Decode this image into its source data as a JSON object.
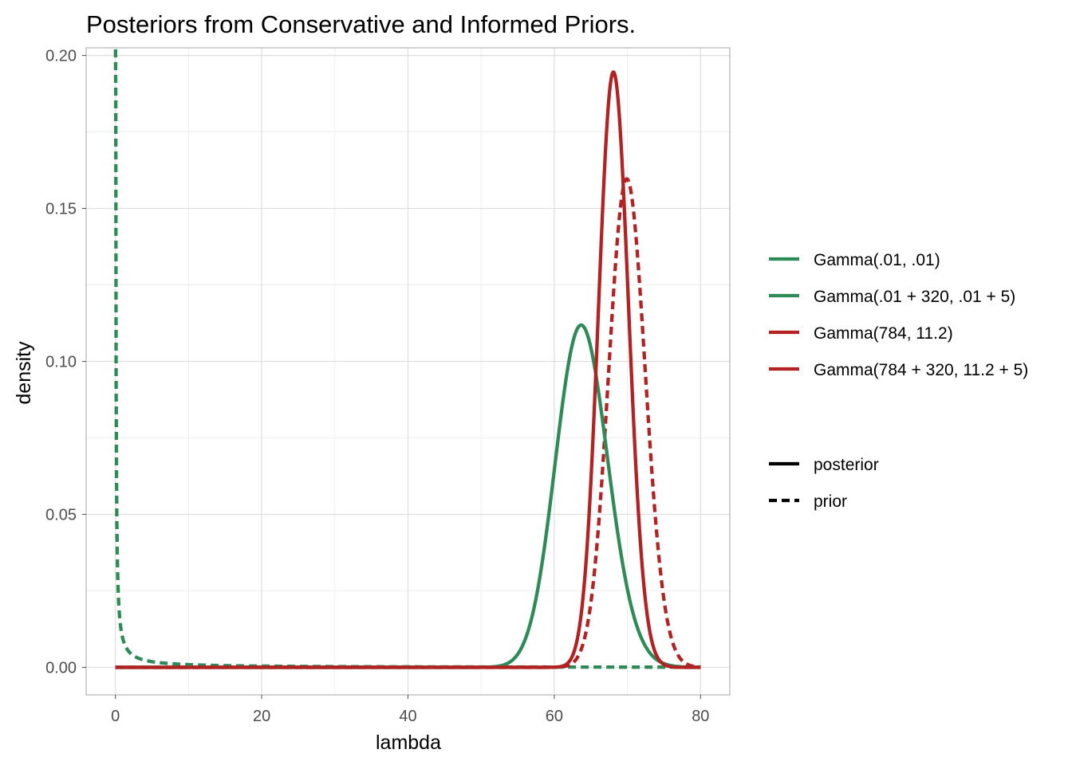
{
  "chart_data": {
    "type": "line",
    "title": "Posteriors from Conservative and Informed Priors.",
    "xlabel": "lambda",
    "ylabel": "density",
    "xlim": [
      -4,
      84
    ],
    "ylim": [
      -0.009,
      0.2025
    ],
    "x_ticks": [
      0,
      20,
      40,
      60,
      80
    ],
    "x_tick_labels": [
      "0",
      "20",
      "40",
      "60",
      "80"
    ],
    "y_ticks": [
      0,
      0.05,
      0.1,
      0.15,
      0.2
    ],
    "y_tick_labels": [
      "0.00",
      "0.05",
      "0.10",
      "0.15",
      "0.20"
    ],
    "grid": true,
    "legend_position": "right",
    "color_legend": [
      {
        "label": "Gamma(.01, .01)",
        "color": "#2e8b57"
      },
      {
        "label": "Gamma(.01 + 320, .01 + 5)",
        "color": "#2e8b57"
      },
      {
        "label": "Gamma(784, 11.2)",
        "color": "#b22222"
      },
      {
        "label": "Gamma(784 + 320, 11.2 + 5)",
        "color": "#b22222"
      }
    ],
    "linetype_legend": [
      {
        "label": "posterior",
        "dash": "solid"
      },
      {
        "label": "prior",
        "dash": "dashed"
      }
    ],
    "series": [
      {
        "distribution": "gamma",
        "shape": 0.01,
        "rate": 0.01,
        "color": "#2e8b57",
        "linetype": "prior"
      },
      {
        "distribution": "gamma",
        "shape": 320.01,
        "rate": 5.01,
        "color": "#2e8b57",
        "linetype": "posterior"
      },
      {
        "distribution": "gamma",
        "shape": 784,
        "rate": 11.2,
        "color": "#b22222",
        "linetype": "prior"
      },
      {
        "distribution": "gamma",
        "shape": 1104,
        "rate": 16.2,
        "color": "#b22222",
        "linetype": "posterior"
      }
    ]
  }
}
